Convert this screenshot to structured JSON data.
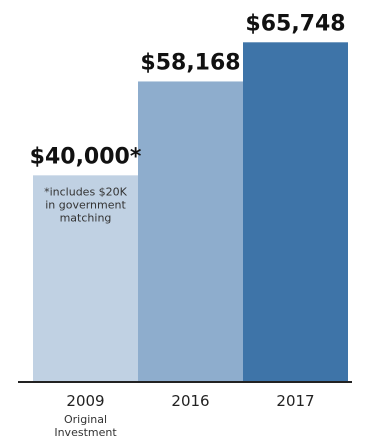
{
  "chart_data": {
    "type": "bar",
    "categories": [
      "2009",
      "2016",
      "2017"
    ],
    "category_sublabels": [
      "Original\nInvestment",
      "",
      ""
    ],
    "values": [
      40000,
      58168,
      65748
    ],
    "value_labels": [
      "$40,000*",
      "$58,168",
      "$65,748"
    ],
    "note": "*includes $20K\nin government\nmatching",
    "ylim": [
      0,
      72000
    ],
    "colors": [
      "#c0d1e3",
      "#8eadcd",
      "#3e74a8"
    ],
    "axis_color": "#222222",
    "grid": false,
    "title": "",
    "xlabel": "",
    "ylabel": ""
  }
}
